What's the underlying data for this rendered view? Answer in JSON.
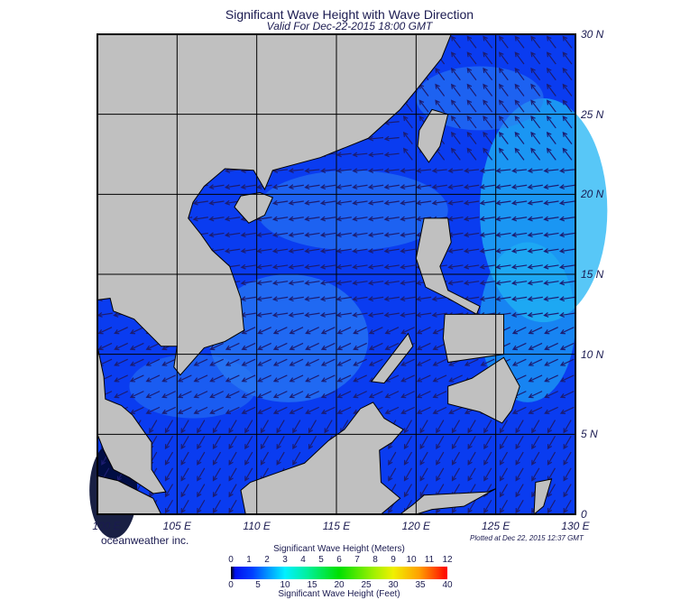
{
  "title": "Significant Wave Height with Wave Direction",
  "subtitle": "Valid For Dec-22-2015 18:00 GMT",
  "map": {
    "lon_range": [
      100,
      130
    ],
    "lat_range": [
      0,
      30
    ],
    "lon_labels": [
      "100 E",
      "105 E",
      "110 E",
      "115 E",
      "120 E",
      "125 E",
      "130 E"
    ],
    "lat_labels": [
      "30 N",
      "25 N",
      "20 N",
      "15 N",
      "10 N",
      "5 N",
      "0"
    ],
    "grid_step_degrees": 5,
    "colors": {
      "land": "#c0c0c0",
      "sea": "#0a3cf0",
      "sea_light": "#2a7cf2",
      "sea_cyan": "#20b4f4",
      "arrow": "#1c1c70",
      "grid": "#000000"
    }
  },
  "footer": {
    "credit": "oceanweather inc.",
    "plotted": "Plotted at Dec 22, 2015 12:37 GMT"
  },
  "colorbar": {
    "meters_title": "Significant Wave Height (Meters)",
    "feet_title": "Significant Wave Height (Feet)",
    "meters_ticks": [
      "0",
      "1",
      "2",
      "3",
      "4",
      "5",
      "6",
      "7",
      "8",
      "9",
      "10",
      "11",
      "12"
    ],
    "feet_ticks": [
      "0",
      "5",
      "10",
      "15",
      "20",
      "25",
      "30",
      "35",
      "40"
    ],
    "range_m": [
      0,
      12
    ]
  }
}
